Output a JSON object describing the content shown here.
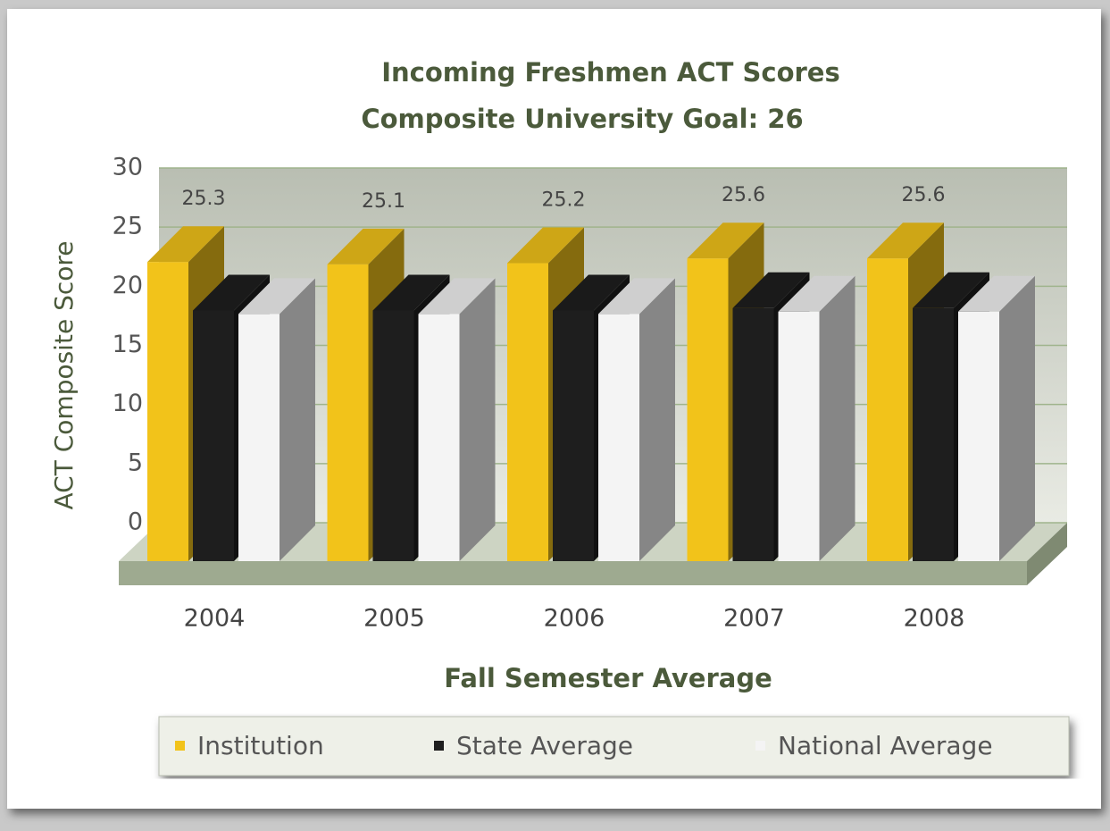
{
  "chart_data": {
    "type": "bar3d",
    "title": "Incoming Freshmen ACT Scores",
    "subtitle": "Composite University Goal: 26",
    "x_label": "Fall Semester Average",
    "y_label": "ACT Composite Score",
    "categories": [
      "2004",
      "2005",
      "2006",
      "2007",
      "2008"
    ],
    "series": [
      {
        "name": "Institution",
        "color": "#f2c31a",
        "values": [
          25.3,
          25.1,
          25.2,
          25.6,
          25.6
        ],
        "labels": true
      },
      {
        "name": "State Average",
        "color": "#1e1e1e",
        "values": [
          21.2,
          21.2,
          21.2,
          21.4,
          21.4
        ],
        "labels": false
      },
      {
        "name": "National Average",
        "color": "#f4f4f4",
        "values": [
          20.9,
          20.9,
          20.9,
          21.1,
          21.1
        ],
        "labels": false
      }
    ],
    "ylim": [
      0,
      30
    ],
    "yticks": [
      0,
      5,
      10,
      15,
      20,
      25,
      30
    ],
    "grid": true,
    "legend": "bottom"
  }
}
